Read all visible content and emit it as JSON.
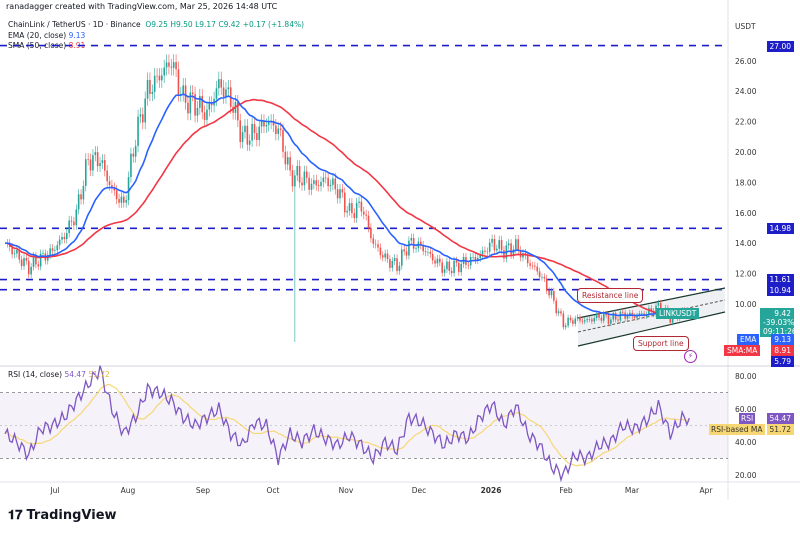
{
  "header": {
    "credit": "ranadagger created with TradingView.com, Mar 25, 2026 14:48 UTC",
    "symbol": "ChainLink / TetherUS · 1D · Binance",
    "o": "O9.25",
    "h": "H9.50",
    "l": "L9.17",
    "c": "C9.42",
    "change": "+0.17 (+1.84%)",
    "ema_label": "EMA (20, close)",
    "ema_value": "9.13",
    "sma_label": "SMA (50, close)",
    "sma_value": "8.91"
  },
  "colors": {
    "up": "#26a69a",
    "down": "#ef5350",
    "ema": "#2962ff",
    "sma": "#f23645",
    "rsi": "#7e57c2",
    "rsi_ma": "#f7d774",
    "level": "#1e1ec8"
  },
  "price_axis": {
    "currency": "USDT",
    "ticks": [
      "26.00",
      "24.00",
      "22.00",
      "20.00",
      "18.00",
      "16.00",
      "14.00",
      "12.00",
      "10.00"
    ]
  },
  "price_tags": {
    "l27": "27.00",
    "l1498": "14.98",
    "l1161": "11.61",
    "l1094": "10.94",
    "symbol": "LINKUSDT",
    "last": "9.42",
    "pct": "-39.03%",
    "countdown": "09:11:26",
    "ema": "EMA",
    "ema_v": "9.13",
    "sma": "SMA:MA",
    "sma_v": "8.91",
    "l579": "5.79"
  },
  "annotations": {
    "resistance": "Resistance line",
    "support": "Support line"
  },
  "rsi": {
    "label": "RSI (14, close)",
    "value": "54.47",
    "ma_value": "51.72",
    "tag": "RSI",
    "ma_tag": "RSI-based MA",
    "ticks": [
      "80.00",
      "60.00",
      "40.00",
      "20.00"
    ]
  },
  "time_axis": [
    "Jul",
    "Aug",
    "Sep",
    "Oct",
    "Nov",
    "Dec",
    "2026",
    "Feb",
    "Mar",
    "Apr"
  ],
  "brand": "TradingView",
  "chart_data": {
    "type": "candlestick",
    "symbol": "LINKUSDT",
    "interval": "1D",
    "start": "2025-06-10",
    "end": "2026-03-25",
    "step_days": 5,
    "closes": [
      14.0,
      13.2,
      12.4,
      13.0,
      13.5,
      14.5,
      16.0,
      19.5,
      19.5,
      17.5,
      16.5,
      21.0,
      24.0,
      25.0,
      26.0,
      23.5,
      23.2,
      22.5,
      24.5,
      23.5,
      21.0,
      21.2,
      22.0,
      21.5,
      18.5,
      18.3,
      17.8,
      18.2,
      17.5,
      16.0,
      16.5,
      14.0,
      13.0,
      12.5,
      14.0,
      13.8,
      13.0,
      12.3,
      12.5,
      12.8,
      13.2,
      14.0,
      13.5,
      13.8,
      12.8,
      12.0,
      10.5,
      8.7,
      9.0,
      8.9,
      9.2,
      9.0,
      9.3,
      9.2,
      9.4,
      9.8,
      9.1,
      9.42
    ],
    "levels": [
      27.0,
      14.98,
      11.61,
      10.94
    ],
    "low_marker": 5.79,
    "ylim": [
      5,
      28
    ],
    "rsi_values": [
      45,
      40,
      32,
      48,
      50,
      55,
      65,
      75,
      84,
      60,
      45,
      55,
      72,
      70,
      65,
      55,
      50,
      55,
      60,
      45,
      38,
      52,
      50,
      30,
      45,
      40,
      47,
      42,
      38,
      44,
      38,
      30,
      40,
      35,
      55,
      52,
      45,
      38,
      45,
      42,
      55,
      63,
      50,
      62,
      45,
      38,
      25,
      20,
      32,
      30,
      38,
      40,
      50,
      48,
      53,
      62,
      45,
      54.47
    ],
    "rsi_ylim": [
      15,
      85
    ],
    "rsi_bands": [
      70,
      30
    ]
  }
}
